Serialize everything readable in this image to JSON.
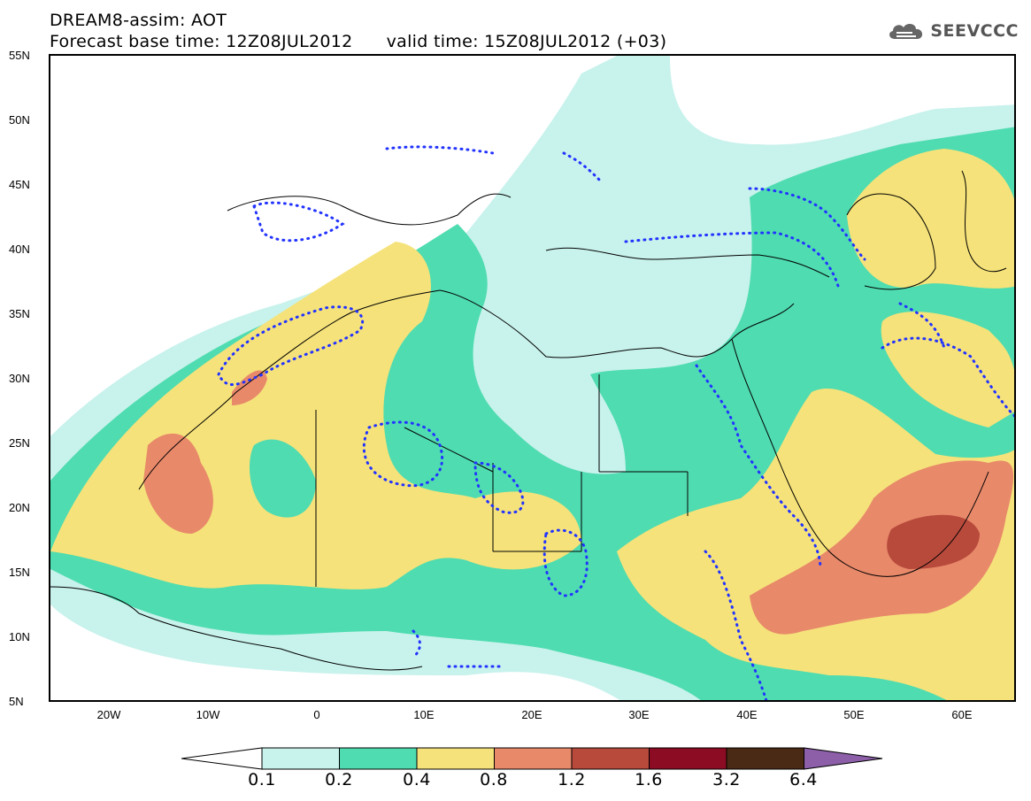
{
  "header": {
    "title": "DREAM8-assim: AOT",
    "base_time": "Forecast base time: 12Z08JUL2012",
    "valid_time": "valid time: 15Z08JUL2012 (+03)",
    "logo_text": "SEEVCCC"
  },
  "map": {
    "lat_labels": [
      "55N",
      "50N",
      "45N",
      "40N",
      "35N",
      "30N",
      "25N",
      "20N",
      "15N",
      "10N",
      "5N"
    ],
    "lon_labels": [
      "20W",
      "10W",
      "0",
      "10E",
      "20E",
      "30E",
      "40E",
      "50E",
      "60E"
    ],
    "field": "aerosol optical thickness",
    "extent": {
      "lon_min": -25,
      "lon_max": 65,
      "lat_min": 5,
      "lat_max": 55
    }
  },
  "legend": {
    "levels": [
      "0.1",
      "0.2",
      "0.4",
      "0.8",
      "1.2",
      "1.6",
      "3.2",
      "6.4"
    ],
    "colors": [
      "#c8f2ec",
      "#4fdcb0",
      "#f5e27a",
      "#e8896a",
      "#b84a3c",
      "#8c0c24",
      "#4a2a14"
    ],
    "under_color": "#ffffff",
    "over_color": "#8c5fa8"
  },
  "overlay": {
    "contour_color": "#2233ff",
    "coastline_color": "#000000"
  }
}
